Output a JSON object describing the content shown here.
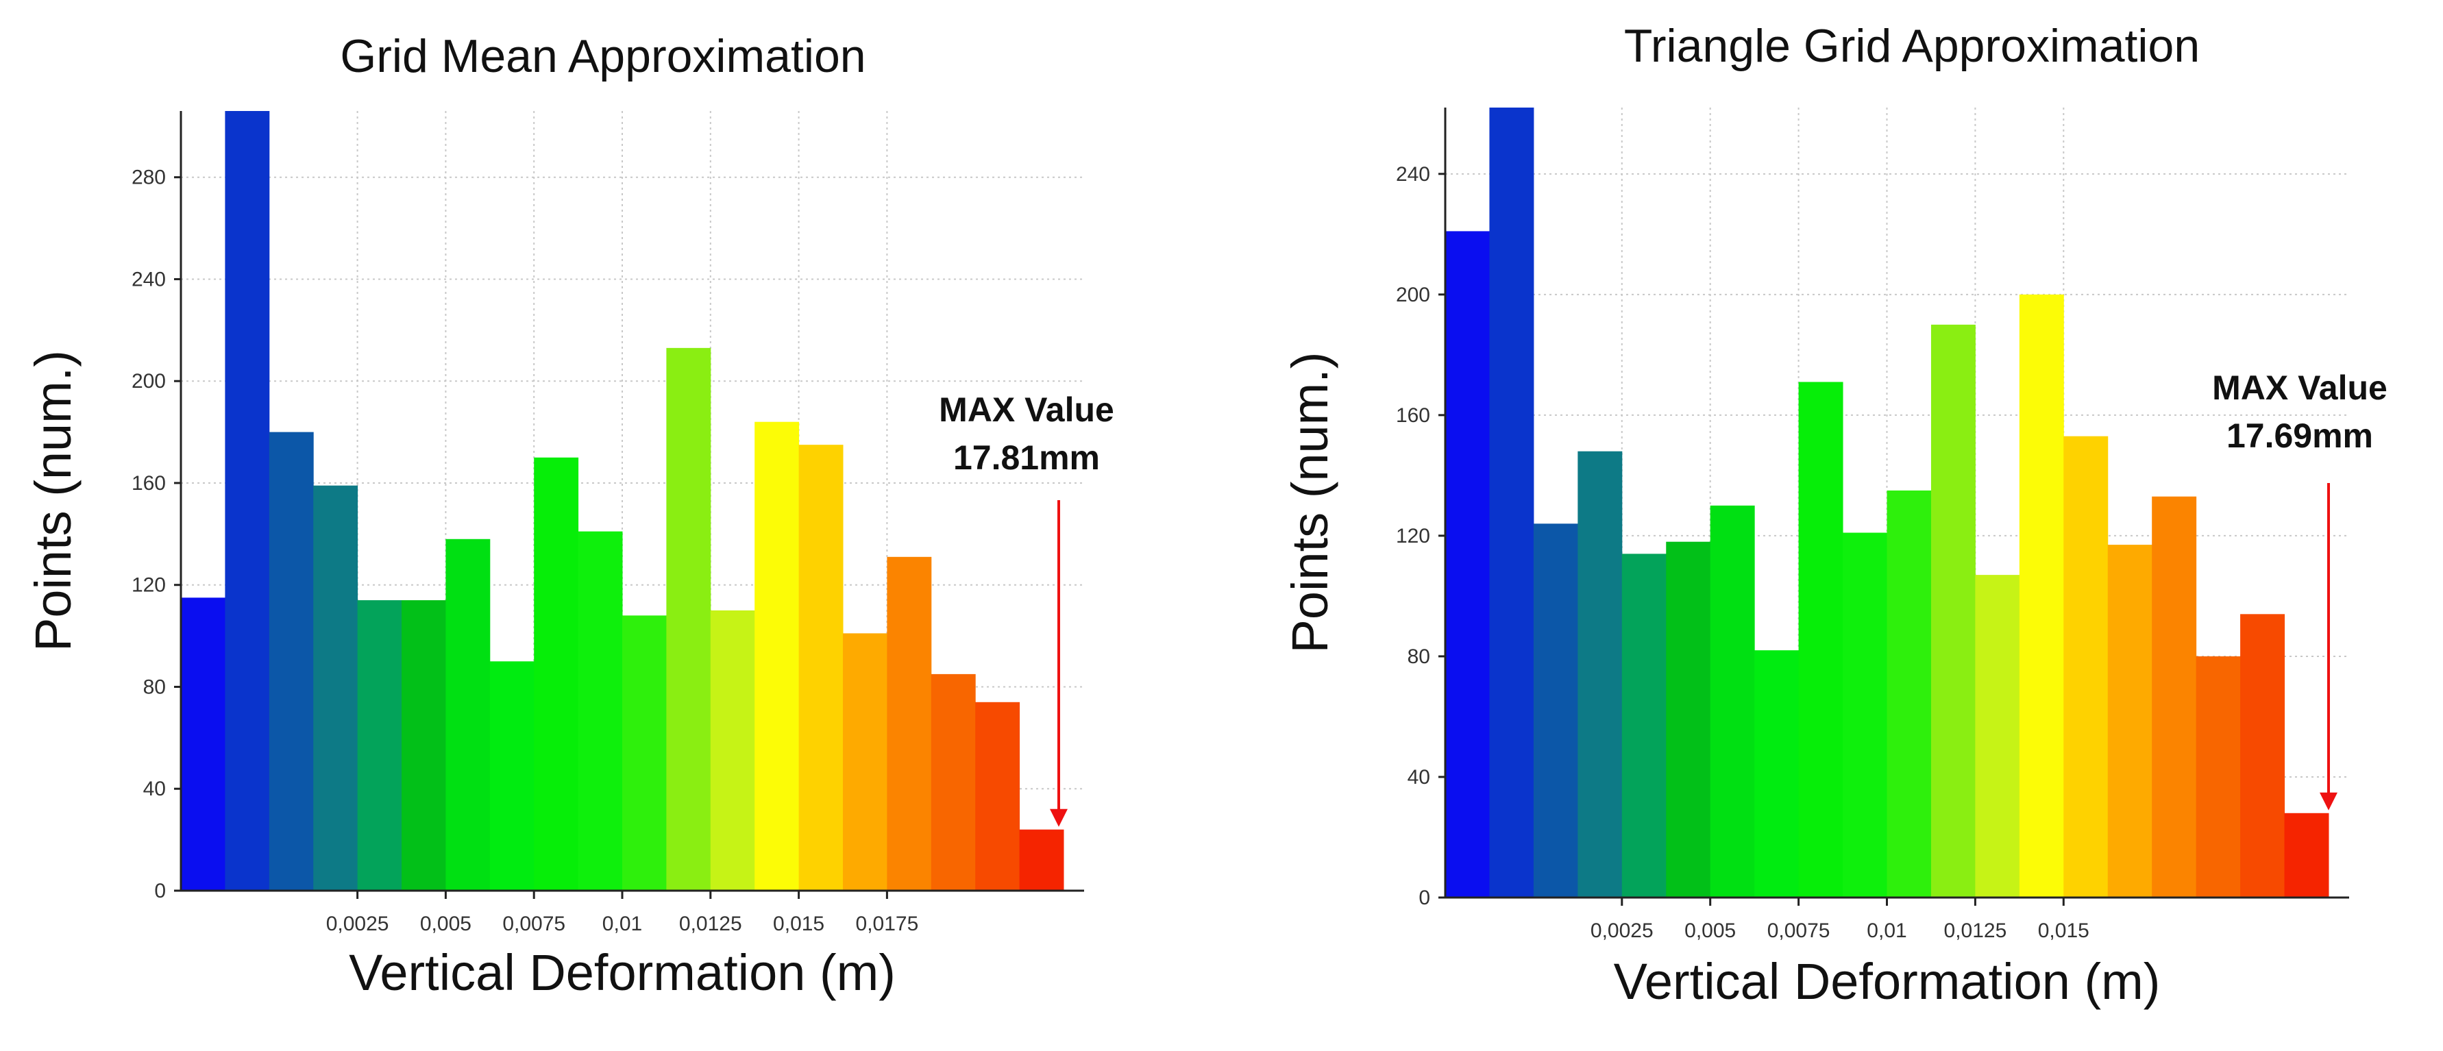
{
  "chart_data": [
    {
      "type": "bar",
      "title": "Grid Mean Approximation",
      "xlabel": "Vertical Deformation (m)",
      "ylabel": "Points (num.)",
      "x_ticks": [
        "0,0025",
        "0,005",
        "0,0075",
        "0,01",
        "0,0125",
        "0,015",
        "0,0175"
      ],
      "y_ticks": [
        "0",
        "40",
        "80",
        "120",
        "160",
        "200",
        "240",
        "280"
      ],
      "ylim": [
        0,
        306
      ],
      "bins": 20,
      "values": [
        115,
        306,
        180,
        159,
        114,
        114,
        138,
        90,
        170,
        141,
        108,
        213,
        110,
        184,
        175,
        101,
        131,
        85,
        74,
        24
      ],
      "colors": [
        "#0a0ef0",
        "#0a34cc",
        "#0c57a8",
        "#0d7a86",
        "#03a35a",
        "#02c018",
        "#00e012",
        "#00ec10",
        "#06ee08",
        "#0ef00c",
        "#2ef00c",
        "#8aee12",
        "#c6f316",
        "#fcfc06",
        "#fed200",
        "#feaa00",
        "#fb8400",
        "#f86600",
        "#f74a00",
        "#f52400"
      ],
      "annotation": {
        "line1": "MAX Value",
        "line2": "17.81mm"
      }
    },
    {
      "type": "bar",
      "title": "Triangle Grid Approximation",
      "xlabel": "Vertical Deformation (m)",
      "ylabel": "Points (num.)",
      "x_ticks": [
        "0,0025",
        "0,005",
        "0,0075",
        "0,01",
        "0,0125",
        "0,015"
      ],
      "y_ticks": [
        "0",
        "40",
        "80",
        "120",
        "160",
        "200",
        "240"
      ],
      "ylim": [
        0,
        262
      ],
      "bins": 20,
      "values": [
        221,
        262,
        124,
        148,
        114,
        118,
        130,
        82,
        171,
        121,
        135,
        190,
        107,
        200,
        153,
        117,
        133,
        80,
        94,
        28
      ],
      "colors": [
        "#0a0ef0",
        "#0a34cc",
        "#0c57a8",
        "#0d7a86",
        "#03a35a",
        "#02c018",
        "#00e012",
        "#00ec10",
        "#06ee08",
        "#0ef00c",
        "#2ef00c",
        "#8aee12",
        "#c6f316",
        "#fcfc06",
        "#fed200",
        "#feaa00",
        "#fb8400",
        "#f86600",
        "#f74a00",
        "#f52400"
      ],
      "annotation": {
        "line1": "MAX Value",
        "line2": "17.69mm"
      }
    }
  ]
}
